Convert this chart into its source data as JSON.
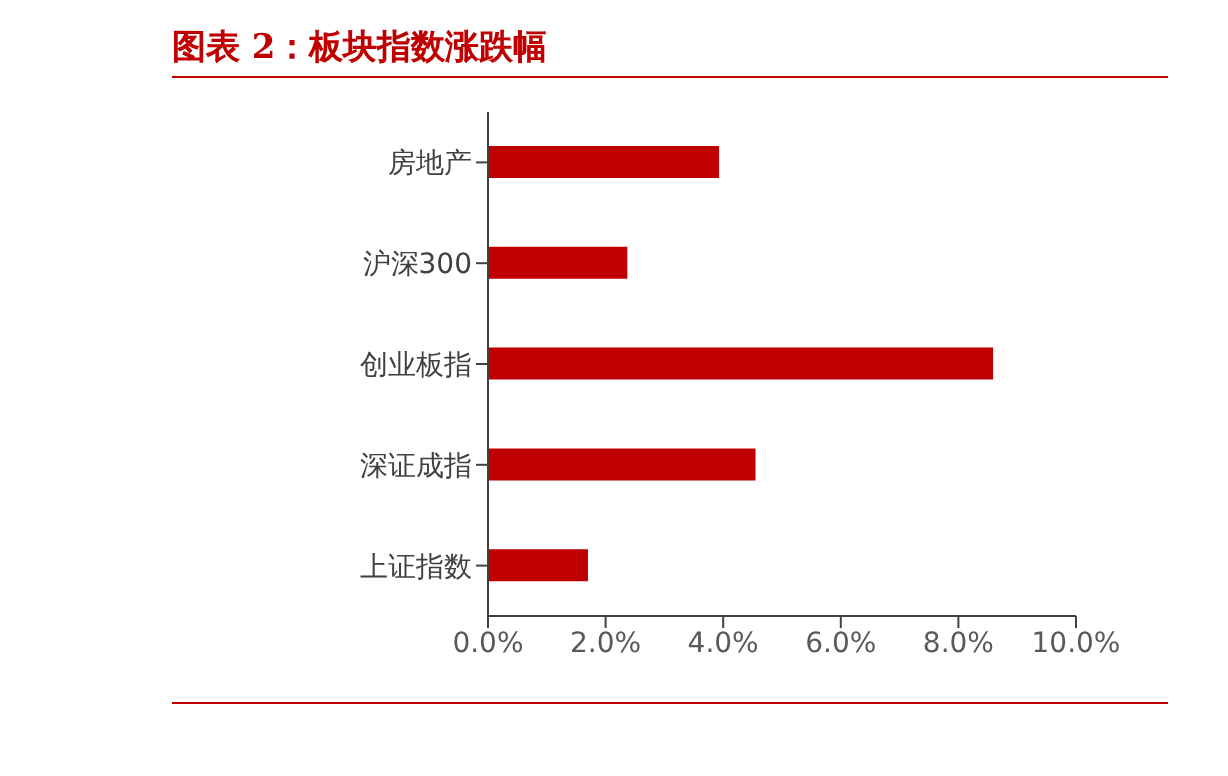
{
  "chart_data": {
    "type": "bar",
    "orientation": "horizontal",
    "title": "图表 2：板块指数涨跌幅",
    "categories": [
      "房地产",
      "沪深300",
      "创业板指",
      "深证成指",
      "上证指数"
    ],
    "values": [
      3.93,
      2.37,
      8.59,
      4.55,
      1.7
    ],
    "color": "#c00000",
    "xlim": [
      0,
      10
    ],
    "xticks": [
      {
        "value": 0,
        "label": "0.0%"
      },
      {
        "value": 2,
        "label": "2.0%"
      },
      {
        "value": 4,
        "label": "4.0%"
      },
      {
        "value": 6,
        "label": "6.0%"
      },
      {
        "value": 8,
        "label": "8.0%"
      },
      {
        "value": 10,
        "label": "10.0%"
      }
    ],
    "grid": false,
    "legend": false
  }
}
